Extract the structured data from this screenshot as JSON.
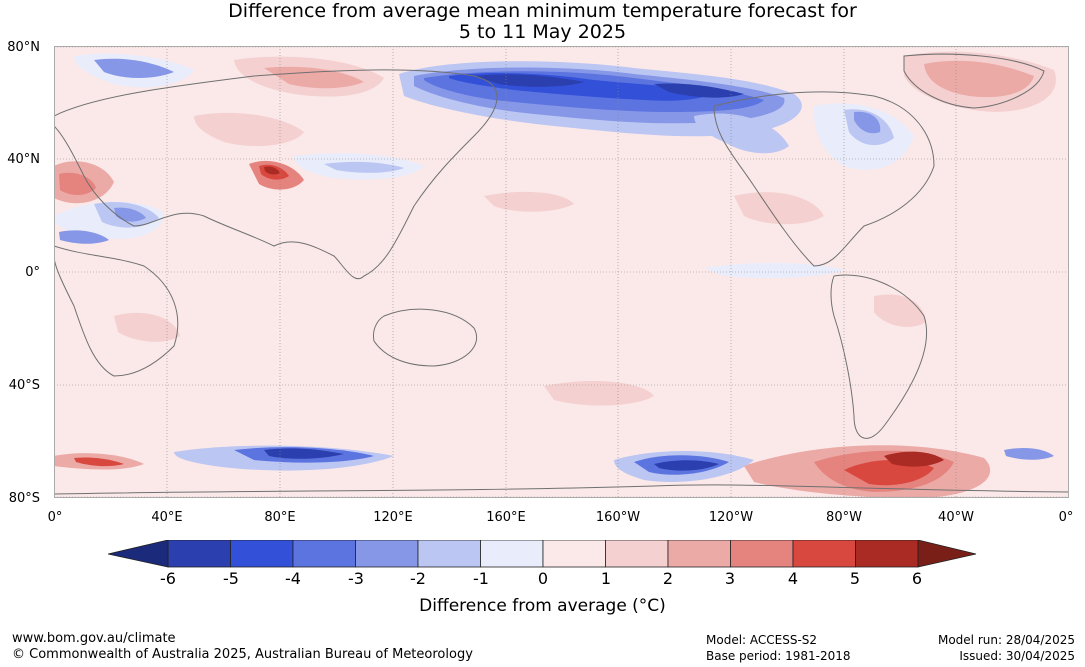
{
  "title": {
    "line1": "Difference from average mean minimum temperature forecast for",
    "line2": "5 to 11 May 2025"
  },
  "map": {
    "lat_labels": [
      "80°N",
      "40°N",
      "0°",
      "40°S",
      "80°S"
    ],
    "lon_labels": [
      "0°",
      "40°E",
      "80°E",
      "120°E",
      "160°E",
      "160°W",
      "120°W",
      "80°W",
      "40°W",
      "0°"
    ]
  },
  "colorbar": {
    "ticks": [
      "-6",
      "-5",
      "-4",
      "-3",
      "-2",
      "-1",
      "0",
      "1",
      "2",
      "3",
      "4",
      "5",
      "6"
    ],
    "low_extend_color": "#1b2a7a",
    "colors": [
      "#2b3fae",
      "#3350d8",
      "#5c74e0",
      "#8797e8",
      "#bcc6f2",
      "#e8ecfb",
      "#fbe9e9",
      "#f5d0d0",
      "#ecaaa7",
      "#e5837e",
      "#d9483f",
      "#aa2a24"
    ],
    "high_extend_color": "#7a1f18",
    "label": "Difference from average (°C)"
  },
  "footer": {
    "website": "www.bom.gov.au/climate",
    "copyright": "© Commonwealth of Australia 2025, Australian Bureau of Meteorology",
    "model": "Model: ACCESS-S2",
    "base_period": "Base period: 1981-2018",
    "model_run": "Model run: 28/04/2025",
    "issued": "Issued: 30/04/2025"
  }
}
